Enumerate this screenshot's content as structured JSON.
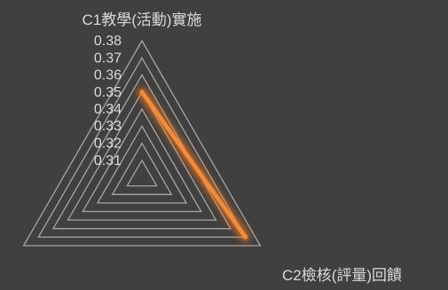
{
  "chart_data": {
    "type": "radar",
    "categories": [
      "C1教學(活動)實施",
      "C2檢核(評量)回饋"
    ],
    "axis_min": 0.3,
    "axis_max": 0.38,
    "ticks": [
      "0.31",
      "0.32",
      "0.33",
      "0.34",
      "0.35",
      "0.36",
      "0.37",
      "0.38"
    ],
    "tick_values": [
      0.31,
      0.32,
      0.33,
      0.34,
      0.35,
      0.36,
      0.37,
      0.38
    ],
    "series": [
      {
        "values": [
          0.35,
          0.37
        ]
      }
    ],
    "colors": {
      "background": "#404040",
      "grid": "#a6a6a6",
      "series": "#f28c38",
      "glow": "#ff7a1a",
      "text": "#d9d9d9"
    }
  }
}
